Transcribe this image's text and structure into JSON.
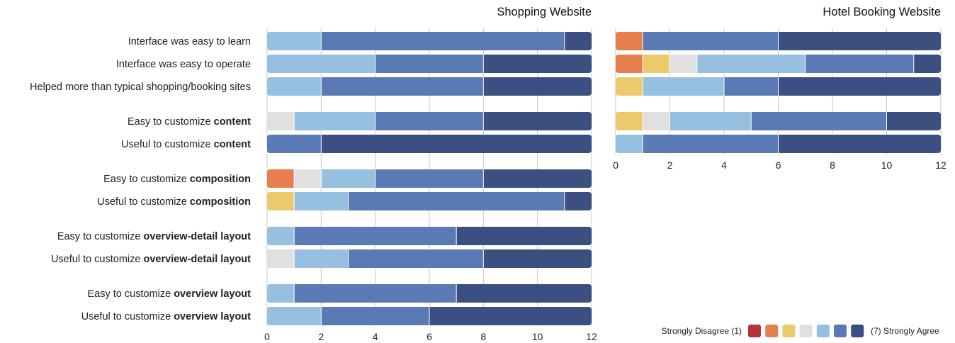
{
  "chart_data": {
    "type": "bar",
    "stacked": true,
    "orientation": "horizontal",
    "scale_colors": [
      "#b5343a",
      "#e5804e",
      "#ecc96b",
      "#e0e0e0",
      "#96bfe0",
      "#5a7ab5",
      "#3b4f80"
    ],
    "legend": {
      "left_label": "Strongly Disagree (1)",
      "right_label": "(7) Strongly Agree",
      "placement": "bottom-right"
    },
    "panels": [
      {
        "title": "Shopping Website",
        "xlim": [
          0,
          12
        ],
        "xticks": [
          "0",
          "2",
          "4",
          "6",
          "8",
          "10",
          "12"
        ],
        "grid": true,
        "rows": [
          {
            "label": "Interface was easy to learn",
            "bold": "",
            "values": [
              0,
              0,
              0,
              0,
              2,
              9,
              1
            ]
          },
          {
            "label": "Interface was easy to operate",
            "bold": "",
            "values": [
              0,
              0,
              0,
              0,
              4,
              4,
              4
            ]
          },
          {
            "label": "Helped more than typical shopping/booking sites",
            "bold": "",
            "values": [
              0,
              0,
              0,
              0,
              2,
              6,
              4
            ]
          },
          {
            "label": "Easy to customize ",
            "bold": "content",
            "values": [
              0,
              0,
              0,
              1,
              3,
              4,
              4
            ]
          },
          {
            "label": "Useful to customize ",
            "bold": "content",
            "values": [
              0,
              0,
              0,
              0,
              0,
              2,
              10
            ]
          },
          {
            "label": "Easy to customize ",
            "bold": "composition",
            "values": [
              0,
              1,
              0,
              1,
              2,
              4,
              4
            ]
          },
          {
            "label": "Useful to customize ",
            "bold": "composition",
            "values": [
              0,
              0,
              1,
              0,
              2,
              8,
              1
            ]
          },
          {
            "label": "Easy to customize ",
            "bold": "overview-detail layout",
            "values": [
              0,
              0,
              0,
              0,
              1,
              6,
              5
            ]
          },
          {
            "label": "Useful to customize ",
            "bold": "overview-detail layout",
            "values": [
              0,
              0,
              0,
              1,
              2,
              5,
              4
            ]
          },
          {
            "label": "Easy to customize ",
            "bold": "overview layout",
            "values": [
              0,
              0,
              0,
              0,
              1,
              6,
              5
            ]
          },
          {
            "label": "Useful to customize ",
            "bold": "overview layout",
            "values": [
              0,
              0,
              0,
              0,
              2,
              4,
              6
            ]
          }
        ]
      },
      {
        "title": "Hotel Booking Website",
        "xlim": [
          0,
          12
        ],
        "xticks": [
          "0",
          "2",
          "4",
          "6",
          "8",
          "10",
          "12"
        ],
        "grid": true,
        "rows": [
          {
            "values": [
              0,
              1,
              0,
              0,
              0,
              5,
              6
            ]
          },
          {
            "values": [
              0,
              1,
              1,
              1,
              4,
              4,
              1
            ]
          },
          {
            "values": [
              0,
              0,
              1,
              0,
              3,
              2,
              6
            ]
          },
          {
            "values": [
              0,
              0,
              1,
              1,
              3,
              5,
              2
            ]
          },
          {
            "values": [
              0,
              0,
              0,
              0,
              1,
              5,
              6
            ]
          }
        ]
      }
    ]
  }
}
